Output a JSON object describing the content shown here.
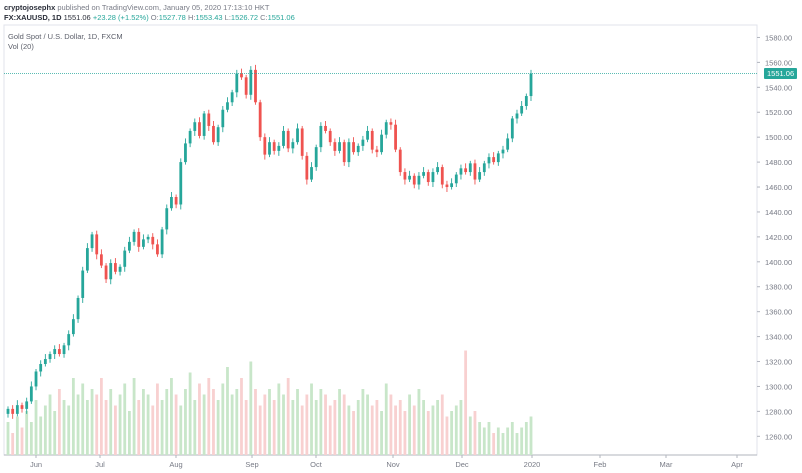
{
  "header": {
    "author": "cryptojosephx",
    "published_text": "published on TradingView.com, January 05, 2020 17:13:10 HKT",
    "symbol_line": "FX:XAUUSD, 1D",
    "last": "1551.06",
    "change": "+23.28 (+1.52%)",
    "o_label": "O:",
    "o_val": "1527.78",
    "h_label": "H:",
    "h_val": "1553.43",
    "l_label": "L:",
    "l_val": "1526.72",
    "c_label": "C:",
    "c_val": "1551.06"
  },
  "legend": {
    "title": "Gold Spot / U.S. Dollar, 1D, FXCM",
    "volume": "Vol (20)"
  },
  "price_tag": "1551.06",
  "colors": {
    "up": "#26a69a",
    "down": "#ef5350",
    "vol_up": "#c8e6c9",
    "vol_down": "#f8d0d0"
  },
  "chart_data": {
    "type": "candlestick",
    "y_ticks": [
      1260,
      1280,
      1300,
      1320,
      1340,
      1360,
      1380,
      1400,
      1420,
      1440,
      1460,
      1480,
      1500,
      1520,
      1540,
      1560,
      1580
    ],
    "ylim": [
      1245,
      1590
    ],
    "x_ticks": [
      "Jun",
      "Jul",
      "Aug",
      "Sep",
      "Oct",
      "Nov",
      "Dec",
      "2020",
      "Feb",
      "Mar",
      "Apr"
    ],
    "last_price": 1551.06,
    "closes": [
      1282,
      1278,
      1285,
      1282,
      1288,
      1300,
      1312,
      1318,
      1322,
      1326,
      1330,
      1326,
      1333,
      1342,
      1354,
      1371,
      1393,
      1411,
      1422,
      1406,
      1397,
      1386,
      1399,
      1392,
      1396,
      1409,
      1416,
      1424,
      1412,
      1418,
      1420,
      1414,
      1406,
      1426,
      1443,
      1452,
      1446,
      1480,
      1495,
      1505,
      1512,
      1501,
      1519,
      1509,
      1496,
      1508,
      1522,
      1528,
      1536,
      1551,
      1548,
      1534,
      1554,
      1528,
      1500,
      1486,
      1496,
      1489,
      1493,
      1505,
      1491,
      1496,
      1507,
      1485,
      1466,
      1476,
      1492,
      1509,
      1505,
      1496,
      1489,
      1496,
      1480,
      1496,
      1488,
      1493,
      1498,
      1505,
      1490,
      1488,
      1502,
      1512,
      1510,
      1490,
      1472,
      1466,
      1469,
      1462,
      1469,
      1472,
      1464,
      1472,
      1476,
      1462,
      1460,
      1463,
      1470,
      1475,
      1472,
      1479,
      1466,
      1472,
      1479,
      1484,
      1480,
      1487,
      1490,
      1499,
      1515,
      1519,
      1525,
      1533,
      1551
    ],
    "volumes": [
      0.3,
      0.2,
      0.35,
      0.25,
      0.4,
      0.3,
      0.5,
      0.35,
      0.45,
      0.55,
      0.4,
      0.6,
      0.5,
      0.45,
      0.7,
      0.55,
      0.65,
      0.5,
      0.6,
      0.55,
      0.7,
      0.5,
      0.6,
      0.45,
      0.55,
      0.65,
      0.4,
      0.7,
      0.5,
      0.6,
      0.55,
      0.45,
      0.65,
      0.5,
      0.6,
      0.7,
      0.55,
      0.45,
      0.6,
      0.75,
      0.5,
      0.65,
      0.55,
      0.7,
      0.6,
      0.5,
      0.65,
      0.8,
      0.55,
      0.6,
      0.7,
      0.5,
      0.85,
      0.6,
      0.45,
      0.55,
      0.6,
      0.5,
      0.65,
      0.55,
      0.7,
      0.5,
      0.6,
      0.45,
      0.55,
      0.65,
      0.5,
      0.6,
      0.55,
      0.45,
      0.5,
      0.6,
      0.55,
      0.45,
      0.4,
      0.5,
      0.6,
      0.55,
      0.45,
      0.5,
      0.4,
      0.65,
      0.55,
      0.45,
      0.5,
      0.4,
      0.55,
      0.45,
      0.6,
      0.5,
      0.4,
      0.45,
      0.5,
      0.55,
      0.35,
      0.4,
      0.45,
      0.5,
      0.95,
      0.35,
      0.4,
      0.3,
      0.25,
      0.3,
      0.2,
      0.25,
      0.2,
      0.25,
      0.3,
      0.2,
      0.25,
      0.3,
      0.35
    ]
  }
}
